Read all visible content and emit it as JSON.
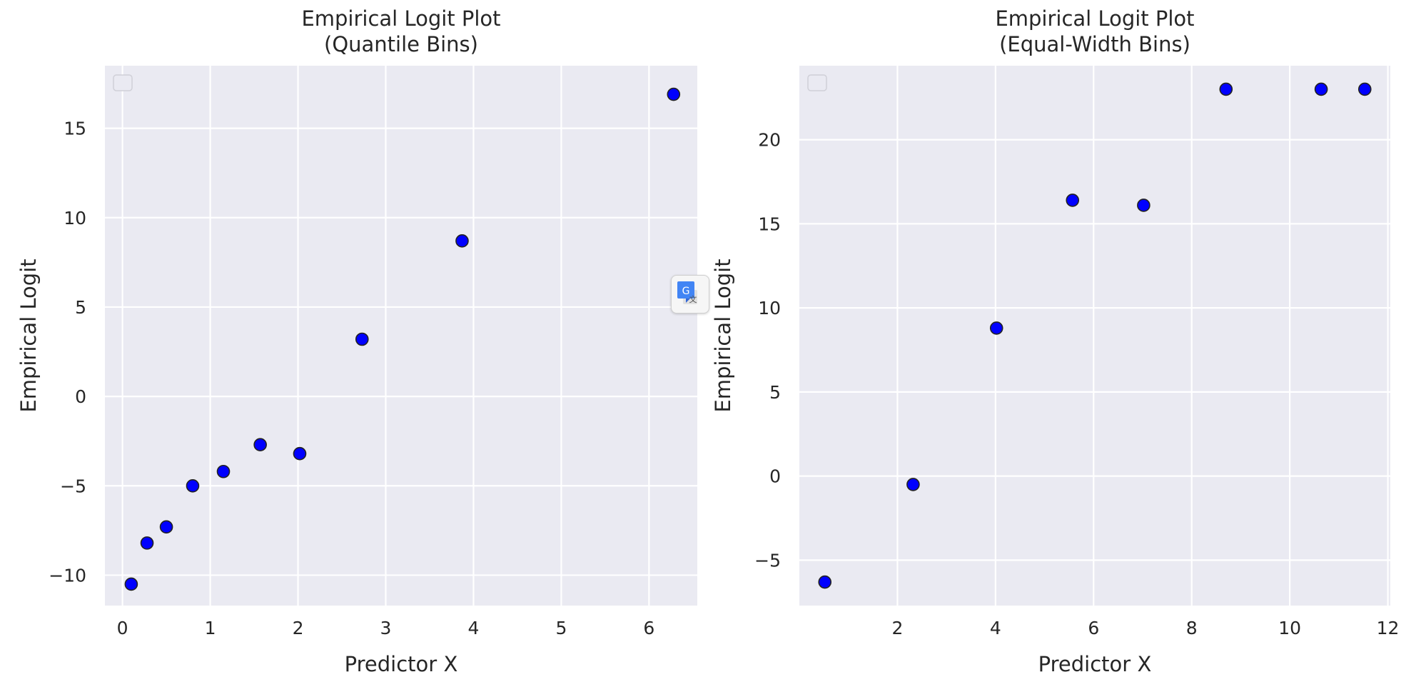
{
  "chart_data": [
    {
      "type": "scatter",
      "title": "Empirical Logit Plot\n(Quantile Bins)",
      "xlabel": "Predictor X",
      "ylabel": "Empirical Logit",
      "xlim": [
        -0.2,
        6.55
      ],
      "ylim": [
        -11.7,
        18.5
      ],
      "xticks": [
        0,
        1,
        2,
        3,
        4,
        5,
        6
      ],
      "yticks": [
        -10,
        -5,
        0,
        5,
        10,
        15
      ],
      "grid": true,
      "legend": "top-left (empty)",
      "marker_color": "#0000ff",
      "points": [
        {
          "x": 0.1,
          "y": -10.5
        },
        {
          "x": 0.28,
          "y": -8.2
        },
        {
          "x": 0.5,
          "y": -7.3
        },
        {
          "x": 0.8,
          "y": -5.0
        },
        {
          "x": 1.15,
          "y": -4.2
        },
        {
          "x": 1.57,
          "y": -2.7
        },
        {
          "x": 2.02,
          "y": -3.2
        },
        {
          "x": 2.73,
          "y": 3.2
        },
        {
          "x": 3.87,
          "y": 8.7
        },
        {
          "x": 6.28,
          "y": 16.9
        }
      ]
    },
    {
      "type": "scatter",
      "title": "Empirical Logit Plot\n(Equal-Width Bins)",
      "xlabel": "Predictor X",
      "ylabel": "Empirical Logit",
      "xlim": [
        0.0,
        12.05
      ],
      "ylim": [
        -7.7,
        24.4
      ],
      "xticks": [
        2,
        4,
        6,
        8,
        10,
        12
      ],
      "yticks": [
        -5,
        0,
        5,
        10,
        15,
        20
      ],
      "grid": true,
      "legend": "top-left (empty)",
      "marker_color": "#0000ff",
      "points": [
        {
          "x": 0.52,
          "y": -6.3
        },
        {
          "x": 2.32,
          "y": -0.5
        },
        {
          "x": 4.02,
          "y": 8.8
        },
        {
          "x": 5.57,
          "y": 16.4
        },
        {
          "x": 7.02,
          "y": 16.1
        },
        {
          "x": 8.7,
          "y": 23.0
        },
        {
          "x": 10.64,
          "y": 23.0
        },
        {
          "x": 11.53,
          "y": 23.0
        }
      ]
    }
  ],
  "overlay": {
    "translate_icon": "google-translate-icon",
    "translate_letter": "G"
  }
}
